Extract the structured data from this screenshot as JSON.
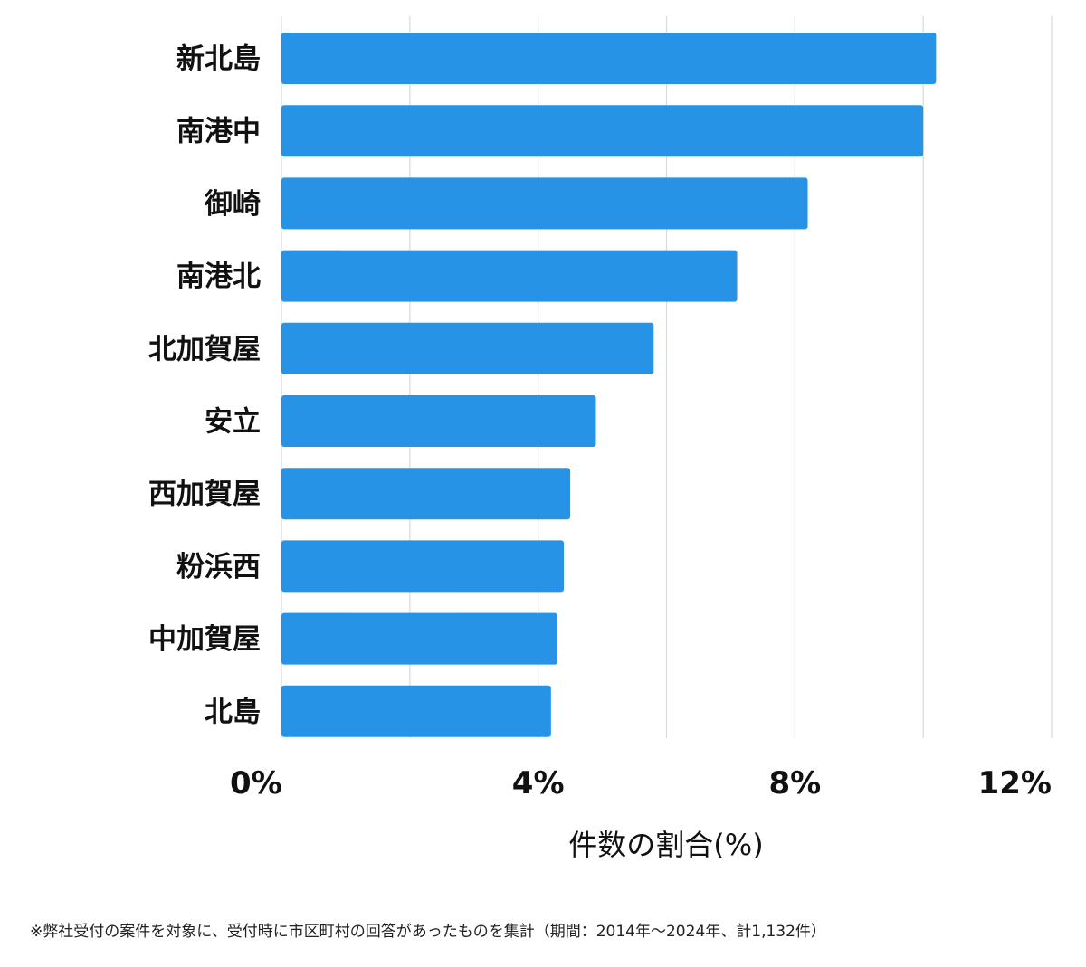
{
  "chart_data": {
    "type": "bar",
    "orientation": "horizontal",
    "categories": [
      "新北島",
      "南港中",
      "御崎",
      "南港北",
      "北加賀屋",
      "安立",
      "西加賀屋",
      "粉浜西",
      "中加賀屋",
      "北島"
    ],
    "values": [
      10.2,
      10.0,
      8.2,
      7.1,
      5.8,
      4.9,
      4.5,
      4.4,
      4.3,
      4.2
    ],
    "xlim": [
      0,
      12
    ],
    "xticks": [
      0,
      4,
      8,
      12
    ],
    "xtick_labels": [
      "0%",
      "4%",
      "8%",
      "12%"
    ],
    "xlabel": "件数の割合(%)",
    "grid": true,
    "bar_color": "#2693e6",
    "grid_color": "#d9d9d9"
  },
  "footnote": "※弊社受付の案件を対象に、受付時に市区町村の回答があったものを集計（期間：2014年～2024年、計1,132件）"
}
